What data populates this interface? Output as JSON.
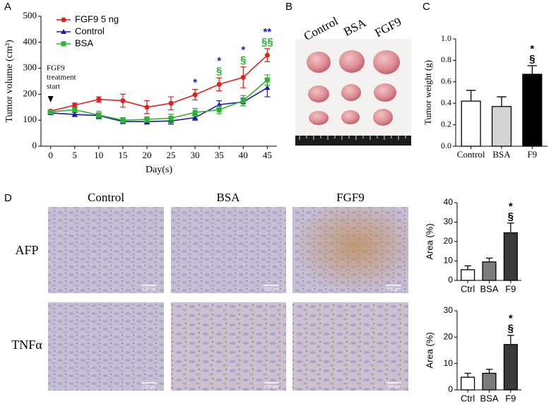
{
  "panel_labels": [
    "A",
    "B",
    "C",
    "D"
  ],
  "photo_labels": [
    "Control",
    "BSA",
    "FGF9"
  ],
  "ihc": {
    "columns": [
      "Control",
      "BSA",
      "FGF9"
    ],
    "rows": [
      "AFP",
      "TNFα"
    ],
    "scale_bar": "100 μm"
  },
  "chart_data": [
    {
      "type": "line",
      "xlabel": "Day(s)",
      "ylabel": "Tumor volume (cm³)",
      "x": [
        0,
        5,
        10,
        15,
        20,
        25,
        30,
        35,
        40,
        45
      ],
      "xlim": [
        -2,
        47
      ],
      "ylim": [
        0,
        500
      ],
      "xticks": [
        0,
        5,
        10,
        15,
        20,
        25,
        30,
        35,
        40,
        45
      ],
      "yticks": [
        0,
        100,
        200,
        300,
        400,
        500
      ],
      "series": [
        {
          "name": "FGF9 5 ng",
          "color": "#e0201b",
          "marker": "circle",
          "values": [
            135,
            158,
            180,
            175,
            150,
            165,
            198,
            238,
            265,
            350
          ],
          "errors": [
            5,
            8,
            10,
            25,
            25,
            25,
            20,
            25,
            40,
            25
          ]
        },
        {
          "name": "Control",
          "color": "#1a1ab0",
          "marker": "triangle",
          "values": [
            128,
            122,
            118,
            95,
            95,
            97,
            110,
            160,
            170,
            225
          ],
          "errors": [
            5,
            8,
            10,
            8,
            10,
            12,
            10,
            15,
            15,
            35
          ]
        },
        {
          "name": "BSA",
          "color": "#2db52d",
          "marker": "square",
          "values": [
            132,
            140,
            120,
            100,
            103,
            108,
            130,
            140,
            175,
            255
          ],
          "errors": [
            5,
            8,
            15,
            10,
            10,
            15,
            15,
            15,
            20,
            20
          ]
        }
      ],
      "annotation_lines": [
        "FGF9",
        "treatment",
        "start"
      ],
      "annotations": [
        {
          "text": "*",
          "x": 30,
          "color": "#1a1ab0"
        },
        {
          "text": "*",
          "x": 35,
          "color": "#1a1ab0"
        },
        {
          "text": "§",
          "x": 35,
          "color": "#2db52d"
        },
        {
          "text": "*",
          "x": 40,
          "color": "#1a1ab0"
        },
        {
          "text": "§",
          "x": 40,
          "color": "#2db52d"
        },
        {
          "text": "**",
          "x": 45,
          "color": "#1a1ab0"
        },
        {
          "text": "§§",
          "x": 45,
          "color": "#2db52d"
        }
      ]
    },
    {
      "type": "bar",
      "ylabel": "Tumor weight (g)",
      "categories": [
        "Control",
        "BSA",
        "F9"
      ],
      "values": [
        0.42,
        0.37,
        0.67
      ],
      "errors": [
        0.1,
        0.09,
        0.08
      ],
      "colors": [
        "#ffffff",
        "#d3d3d3",
        "#000000"
      ],
      "ylim": [
        0,
        1.0
      ],
      "yticks": [
        {
          "value": 0,
          "label": "0.0"
        },
        0.2,
        0.4,
        0.6,
        0.8,
        {
          "value": 1,
          "label": "1.0"
        }
      ],
      "annotations": [
        {
          "text": "*",
          "at": "F9",
          "color": "#000000"
        },
        {
          "text": "§",
          "at": "F9",
          "color": "#000000"
        }
      ]
    },
    {
      "type": "bar",
      "ylabel": "Area (%)",
      "categories": [
        "Ctrl",
        "BSA",
        "F9"
      ],
      "values": [
        5.5,
        9.5,
        24.5
      ],
      "errors": [
        2,
        2,
        5
      ],
      "colors": [
        "#ffffff",
        "#7d7d7d",
        "#3a3a3a"
      ],
      "ylim": [
        0,
        40
      ],
      "yticks": [
        0,
        10,
        20,
        30,
        40
      ],
      "annotations": [
        {
          "text": "*",
          "at": "F9",
          "color": "#000000"
        },
        {
          "text": "§",
          "at": "F9",
          "color": "#000000"
        }
      ]
    },
    {
      "type": "bar",
      "ylabel": "Area (%)",
      "categories": [
        "Ctrl",
        "BSA",
        "F9"
      ],
      "values": [
        4.8,
        6.3,
        17.2
      ],
      "errors": [
        1.5,
        1.5,
        3.5
      ],
      "colors": [
        "#ffffff",
        "#7d7d7d",
        "#3a3a3a"
      ],
      "ylim": [
        0,
        30
      ],
      "yticks": [
        0,
        10,
        20,
        30
      ],
      "annotations": [
        {
          "text": "*",
          "at": "F9",
          "color": "#000000"
        },
        {
          "text": "§",
          "at": "F9",
          "color": "#000000"
        }
      ]
    }
  ]
}
